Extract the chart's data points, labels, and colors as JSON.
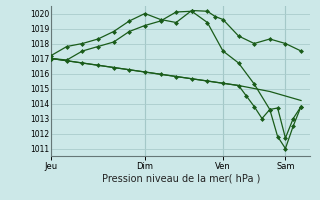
{
  "xlabel": "Pression niveau de la mer( hPa )",
  "ylim": [
    1010.5,
    1020.5
  ],
  "yticks": [
    1011,
    1012,
    1013,
    1014,
    1015,
    1016,
    1017,
    1018,
    1019,
    1020
  ],
  "bg_color": "#cce8e8",
  "grid_color": "#aacccc",
  "line_color": "#1a5c1a",
  "xtick_labels": [
    "Jeu",
    "Dim",
    "Ven",
    "Sam"
  ],
  "xtick_positions": [
    0.0,
    3.0,
    5.5,
    7.5
  ],
  "series1_x": [
    0.0,
    0.5,
    1.0,
    1.5,
    2.0,
    2.5,
    3.0,
    3.5,
    4.0,
    4.5,
    5.0,
    5.25,
    5.5,
    6.0,
    6.5,
    7.0,
    7.5,
    8.0
  ],
  "series1_y": [
    1017.2,
    1017.8,
    1018.0,
    1018.3,
    1018.8,
    1019.5,
    1020.0,
    1019.6,
    1019.4,
    1020.2,
    1020.15,
    1019.8,
    1019.6,
    1018.5,
    1018.0,
    1018.3,
    1018.0,
    1017.5
  ],
  "series2_x": [
    0.0,
    0.5,
    1.0,
    1.5,
    2.0,
    2.5,
    3.0,
    3.5,
    4.0,
    4.5,
    5.0,
    5.5,
    6.0,
    6.5,
    7.0,
    7.25,
    7.5,
    7.75,
    8.0
  ],
  "series2_y": [
    1017.0,
    1016.9,
    1017.5,
    1017.8,
    1018.1,
    1018.8,
    1019.2,
    1019.5,
    1020.1,
    1020.15,
    1019.4,
    1017.5,
    1016.7,
    1015.3,
    1013.6,
    1013.7,
    1011.7,
    1013.0,
    1013.8
  ],
  "series3_x": [
    0.0,
    0.5,
    1.0,
    1.5,
    2.0,
    2.5,
    3.0,
    3.5,
    4.0,
    4.5,
    5.0,
    5.5,
    6.0,
    6.25,
    6.5,
    6.75,
    7.0,
    7.25,
    7.5,
    7.75,
    8.0
  ],
  "series3_y": [
    1017.0,
    1016.85,
    1016.7,
    1016.55,
    1016.4,
    1016.25,
    1016.1,
    1015.95,
    1015.8,
    1015.65,
    1015.5,
    1015.35,
    1015.2,
    1014.5,
    1013.8,
    1013.0,
    1013.6,
    1011.8,
    1011.0,
    1012.5,
    1013.8
  ],
  "series4_x": [
    0.0,
    1.0,
    2.0,
    3.0,
    4.0,
    5.0,
    6.0,
    7.0,
    7.5,
    8.0
  ],
  "series4_y": [
    1017.0,
    1016.7,
    1016.4,
    1016.1,
    1015.8,
    1015.5,
    1015.2,
    1014.8,
    1014.5,
    1014.2
  ],
  "xlim": [
    0.0,
    8.3
  ],
  "vlines_x": [
    0.0,
    3.0,
    5.5,
    7.5
  ]
}
